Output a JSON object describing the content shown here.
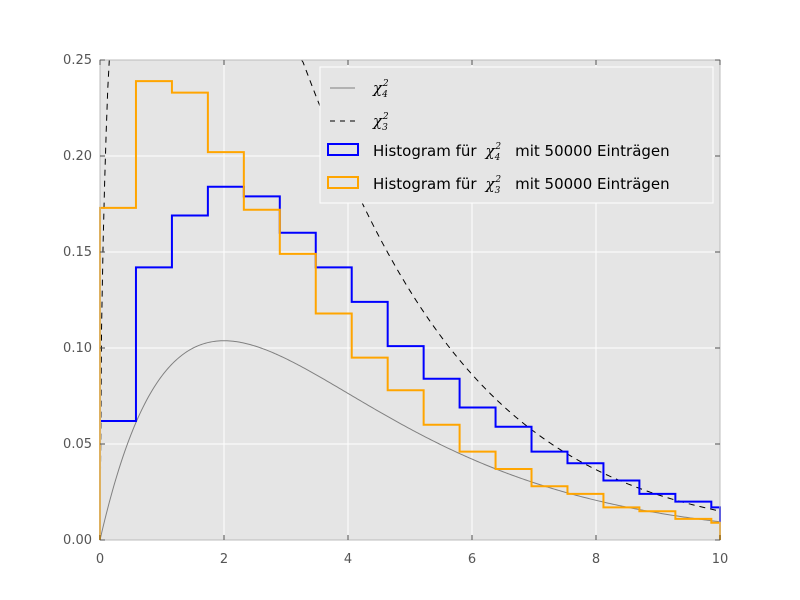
{
  "chart_data": {
    "type": "line",
    "title": "",
    "xlabel": "",
    "ylabel": "",
    "xlim": [
      0,
      10
    ],
    "ylim": [
      0,
      0.25
    ],
    "grid": true,
    "legend_position": "top-right",
    "x_ticks": [
      {
        "value": 0,
        "label": "0"
      },
      {
        "value": 2,
        "label": "2"
      },
      {
        "value": 4,
        "label": "4"
      },
      {
        "value": 6,
        "label": "6"
      },
      {
        "value": 8,
        "label": "8"
      },
      {
        "value": 10,
        "label": "10"
      }
    ],
    "y_ticks": [
      {
        "value": 0,
        "label": "0.00"
      },
      {
        "value": 0.05,
        "label": "0.05"
      },
      {
        "value": 0.1,
        "label": "0.10"
      },
      {
        "value": 0.15,
        "label": "0.15"
      },
      {
        "value": 0.2,
        "label": "0.20"
      },
      {
        "value": 0.25,
        "label": "0.25"
      }
    ],
    "bin_edges": [
      0,
      0.58,
      1.16,
      1.74,
      2.32,
      2.9,
      3.48,
      4.06,
      4.64,
      5.22,
      5.8,
      6.38,
      6.96,
      7.54,
      8.12,
      8.7,
      9.28,
      9.86,
      10
    ],
    "series": [
      {
        "name": "χ",
        "sub": "4",
        "sup": "2",
        "type": "line",
        "style": "solid",
        "color": "#808080",
        "dof": 4
      },
      {
        "name": "χ",
        "sub": "3",
        "sup": "2",
        "type": "line",
        "style": "dashed",
        "color": "#000000",
        "dof": 3
      },
      {
        "name_prefix": "Histogram für",
        "name_math": "χ",
        "sub": "4",
        "sup": "2",
        "name_suffix": "mit 50000 Einträgen",
        "type": "step",
        "color": "#0000ff",
        "values": [
          0.062,
          0.142,
          0.169,
          0.184,
          0.179,
          0.16,
          0.142,
          0.124,
          0.101,
          0.084,
          0.069,
          0.059,
          0.046,
          0.04,
          0.031,
          0.024,
          0.02,
          0.017
        ]
      },
      {
        "name_prefix": "Histogram für",
        "name_math": "χ",
        "sub": "3",
        "sup": "2",
        "name_suffix": "mit 50000 Einträgen",
        "type": "step",
        "color": "#ffa500",
        "values": [
          0.173,
          0.239,
          0.233,
          0.202,
          0.172,
          0.149,
          0.118,
          0.095,
          0.078,
          0.06,
          0.046,
          0.037,
          0.028,
          0.024,
          0.017,
          0.015,
          0.011,
          0.009
        ]
      }
    ]
  }
}
